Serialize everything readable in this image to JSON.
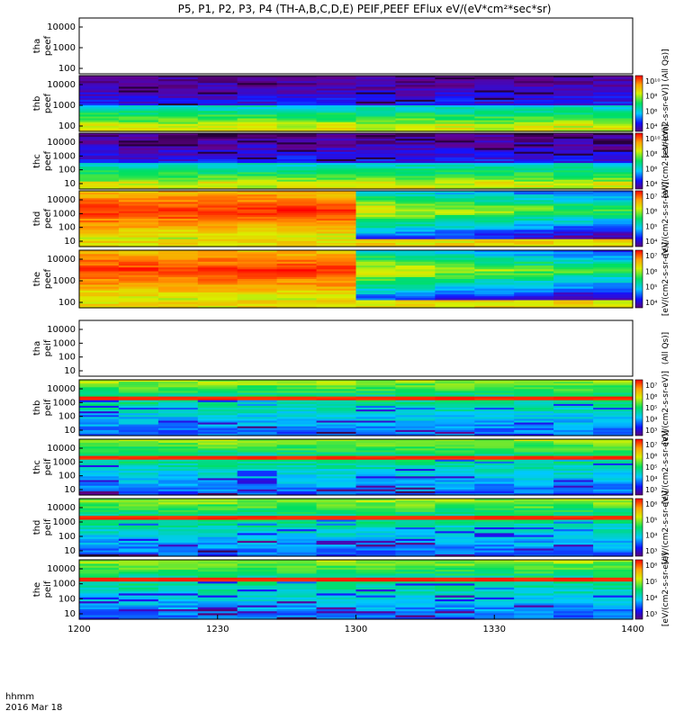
{
  "title": "P5, P1, P2, P3, P4 (TH-A,B,C,D,E) PEIF,PEEF EFlux eV/(eV*cm²*sec*sr)",
  "corner_label_1": "hhmm",
  "corner_label_2": "2016 Mar 18",
  "chart_data": {
    "type": "heatmap",
    "x_ticks": [
      "1200",
      "1230",
      "1300",
      "1330",
      "1400"
    ],
    "x_range": [
      "12:00",
      "14:00"
    ],
    "colormap": "rainbow (purple-blue-cyan-green-yellow-red)",
    "panels": [
      {
        "line1": "tha",
        "line2": "peef",
        "y_ticks": [
          "10000",
          "1000",
          "100"
        ],
        "empty": true,
        "colorbar": null
      },
      {
        "line1": "thb",
        "line2": "peef",
        "y_ticks": [
          "10000",
          "1000",
          "100"
        ],
        "empty": false,
        "colorbar": [
          "10¹⁰",
          "10⁸",
          "10⁶",
          "10⁴"
        ],
        "unit": "[eV/(cm2-s-sr-eV)] (All Qs)]",
        "intensity": "medium"
      },
      {
        "line1": "thc",
        "line2": "peef",
        "y_ticks": [
          "10000",
          "1000",
          "100",
          "10"
        ],
        "empty": false,
        "colorbar": [
          "10¹⁰",
          "10⁸",
          "10⁶",
          "10⁴"
        ],
        "unit": "[eV/(cm2-s-sr-eV)]",
        "intensity": "medium"
      },
      {
        "line1": "thd",
        "line2": "peef",
        "y_ticks": [
          "10000",
          "1000",
          "100",
          "10"
        ],
        "empty": false,
        "colorbar": [
          "10⁷",
          "10⁶",
          "10⁵",
          "10⁴"
        ],
        "unit": "[eV/(cm2-s-sr-eV)]",
        "intensity": "high"
      },
      {
        "line1": "the",
        "line2": "peef",
        "y_ticks": [
          "10000",
          "1000",
          "100"
        ],
        "empty": false,
        "colorbar": [
          "10⁷",
          "10⁶",
          "10⁵",
          "10⁴"
        ],
        "unit": "[eV/(cm2-s-sr-eV)]",
        "intensity": "high"
      },
      {
        "line1": "tha",
        "line2": "peif",
        "y_ticks": [
          "10000",
          "1000",
          "100",
          "10"
        ],
        "empty": true,
        "colorbar": null,
        "unit": "(All Qs)]"
      },
      {
        "line1": "thb",
        "line2": "peif",
        "y_ticks": [
          "10000",
          "1000",
          "100",
          "10"
        ],
        "empty": false,
        "colorbar": [
          "10⁷",
          "10⁶",
          "10⁵",
          "10⁴",
          "10³"
        ],
        "unit": "[eV/(cm2-s-sr-eV)]",
        "intensity": "low"
      },
      {
        "line1": "thc",
        "line2": "peif",
        "y_ticks": [
          "10000",
          "1000",
          "100",
          "10"
        ],
        "empty": false,
        "colorbar": [
          "10⁷",
          "10⁶",
          "10⁵",
          "10⁴",
          "10³"
        ],
        "unit": "[eV/(cm2-s-sr-eV)]",
        "intensity": "low"
      },
      {
        "line1": "thd",
        "line2": "peif",
        "y_ticks": [
          "10000",
          "1000",
          "100",
          "10"
        ],
        "empty": false,
        "colorbar": [
          "10⁶",
          "10⁵",
          "10⁴",
          "10³"
        ],
        "unit": "[eV/(cm2-s-sr-eV)]",
        "intensity": "low"
      },
      {
        "line1": "the",
        "line2": "peif",
        "y_ticks": [
          "10000",
          "1000",
          "100",
          "10"
        ],
        "empty": false,
        "colorbar": [
          "10⁶",
          "10⁵",
          "10⁴",
          "10³"
        ],
        "unit": "[eV/(cm2-s-sr-eV)]",
        "intensity": "low"
      }
    ]
  }
}
